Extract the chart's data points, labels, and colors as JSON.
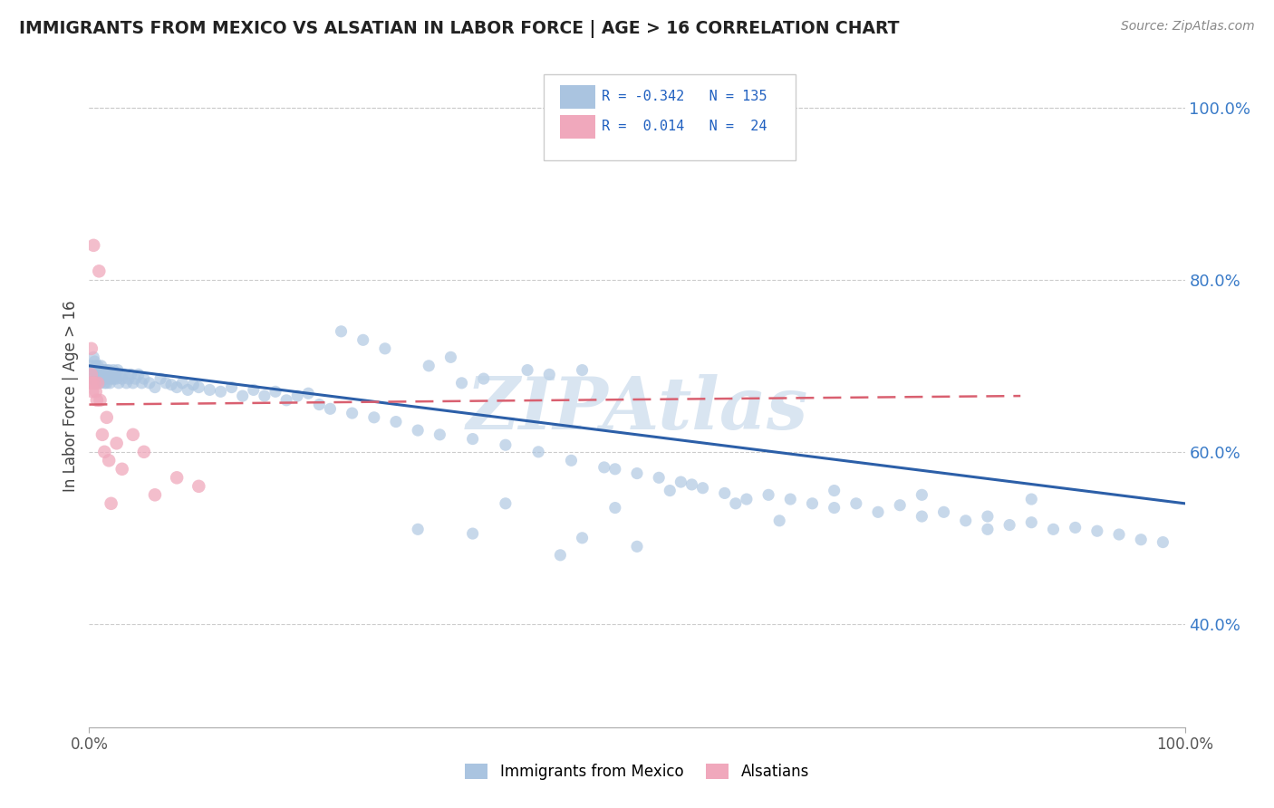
{
  "title": "IMMIGRANTS FROM MEXICO VS ALSATIAN IN LABOR FORCE | AGE > 16 CORRELATION CHART",
  "source_text": "Source: ZipAtlas.com",
  "ylabel": "In Labor Force | Age > 16",
  "xlim": [
    0,
    1.0
  ],
  "ylim": [
    0.28,
    1.05
  ],
  "xtick_labels": [
    "0.0%",
    "100.0%"
  ],
  "ytick_right_labels": [
    "40.0%",
    "60.0%",
    "80.0%",
    "100.0%"
  ],
  "ytick_right_positions": [
    0.4,
    0.6,
    0.8,
    1.0
  ],
  "blue_color": "#aac4e0",
  "pink_color": "#f0a8bc",
  "blue_line_color": "#2c5fa8",
  "pink_line_color": "#d96070",
  "grid_color": "#cccccc",
  "background_color": "#ffffff",
  "title_color": "#222222",
  "watermark_color": "#c0d4e8",
  "blue_trendline_x": [
    0.0,
    1.0
  ],
  "blue_trendline_y": [
    0.7,
    0.54
  ],
  "pink_trendline_x": [
    0.0,
    0.85
  ],
  "pink_trendline_y": [
    0.655,
    0.665
  ],
  "blue_scatter_x": [
    0.002,
    0.003,
    0.003,
    0.004,
    0.004,
    0.005,
    0.005,
    0.006,
    0.006,
    0.007,
    0.007,
    0.008,
    0.008,
    0.009,
    0.009,
    0.01,
    0.01,
    0.011,
    0.011,
    0.012,
    0.012,
    0.013,
    0.013,
    0.014,
    0.014,
    0.015,
    0.015,
    0.016,
    0.016,
    0.017,
    0.018,
    0.018,
    0.019,
    0.02,
    0.021,
    0.022,
    0.023,
    0.024,
    0.025,
    0.026,
    0.027,
    0.028,
    0.03,
    0.032,
    0.034,
    0.036,
    0.038,
    0.04,
    0.042,
    0.045,
    0.048,
    0.05,
    0.055,
    0.06,
    0.065,
    0.07,
    0.075,
    0.08,
    0.085,
    0.09,
    0.095,
    0.1,
    0.11,
    0.12,
    0.13,
    0.14,
    0.15,
    0.16,
    0.17,
    0.18,
    0.19,
    0.2,
    0.21,
    0.22,
    0.24,
    0.26,
    0.28,
    0.3,
    0.32,
    0.35,
    0.38,
    0.41,
    0.44,
    0.47,
    0.5,
    0.52,
    0.54,
    0.56,
    0.58,
    0.6,
    0.31,
    0.33,
    0.27,
    0.25,
    0.23,
    0.42,
    0.45,
    0.34,
    0.36,
    0.4,
    0.48,
    0.55,
    0.62,
    0.64,
    0.66,
    0.68,
    0.7,
    0.72,
    0.74,
    0.76,
    0.78,
    0.8,
    0.82,
    0.84,
    0.86,
    0.88,
    0.9,
    0.92,
    0.94,
    0.96,
    0.98,
    0.5,
    0.45,
    0.35,
    0.3,
    0.43,
    0.38,
    0.68,
    0.76,
    0.82,
    0.86,
    0.63,
    0.59,
    0.48,
    0.53
  ],
  "blue_scatter_y": [
    0.7,
    0.695,
    0.685,
    0.71,
    0.69,
    0.705,
    0.695,
    0.7,
    0.68,
    0.695,
    0.685,
    0.7,
    0.69,
    0.695,
    0.685,
    0.695,
    0.68,
    0.69,
    0.7,
    0.685,
    0.695,
    0.685,
    0.69,
    0.68,
    0.695,
    0.69,
    0.685,
    0.695,
    0.68,
    0.69,
    0.685,
    0.695,
    0.68,
    0.69,
    0.685,
    0.695,
    0.685,
    0.69,
    0.685,
    0.695,
    0.68,
    0.69,
    0.685,
    0.69,
    0.68,
    0.685,
    0.69,
    0.68,
    0.685,
    0.69,
    0.68,
    0.685,
    0.68,
    0.675,
    0.685,
    0.68,
    0.678,
    0.675,
    0.68,
    0.672,
    0.678,
    0.675,
    0.672,
    0.67,
    0.675,
    0.665,
    0.672,
    0.665,
    0.67,
    0.66,
    0.665,
    0.668,
    0.655,
    0.65,
    0.645,
    0.64,
    0.635,
    0.625,
    0.62,
    0.615,
    0.608,
    0.6,
    0.59,
    0.582,
    0.575,
    0.57,
    0.565,
    0.558,
    0.552,
    0.545,
    0.7,
    0.71,
    0.72,
    0.73,
    0.74,
    0.69,
    0.695,
    0.68,
    0.685,
    0.695,
    0.58,
    0.562,
    0.55,
    0.545,
    0.54,
    0.535,
    0.54,
    0.53,
    0.538,
    0.525,
    0.53,
    0.52,
    0.525,
    0.515,
    0.518,
    0.51,
    0.512,
    0.508,
    0.504,
    0.498,
    0.495,
    0.49,
    0.5,
    0.505,
    0.51,
    0.48,
    0.54,
    0.555,
    0.55,
    0.51,
    0.545,
    0.52,
    0.54,
    0.535,
    0.555
  ],
  "pink_scatter_x": [
    0.001,
    0.002,
    0.002,
    0.003,
    0.003,
    0.004,
    0.005,
    0.006,
    0.007,
    0.008,
    0.009,
    0.01,
    0.012,
    0.014,
    0.016,
    0.018,
    0.02,
    0.025,
    0.03,
    0.04,
    0.05,
    0.06,
    0.08,
    0.1
  ],
  "pink_scatter_y": [
    0.68,
    0.72,
    0.69,
    0.68,
    0.67,
    0.84,
    0.68,
    0.67,
    0.66,
    0.68,
    0.81,
    0.66,
    0.62,
    0.6,
    0.64,
    0.59,
    0.54,
    0.61,
    0.58,
    0.62,
    0.6,
    0.55,
    0.57,
    0.56
  ]
}
